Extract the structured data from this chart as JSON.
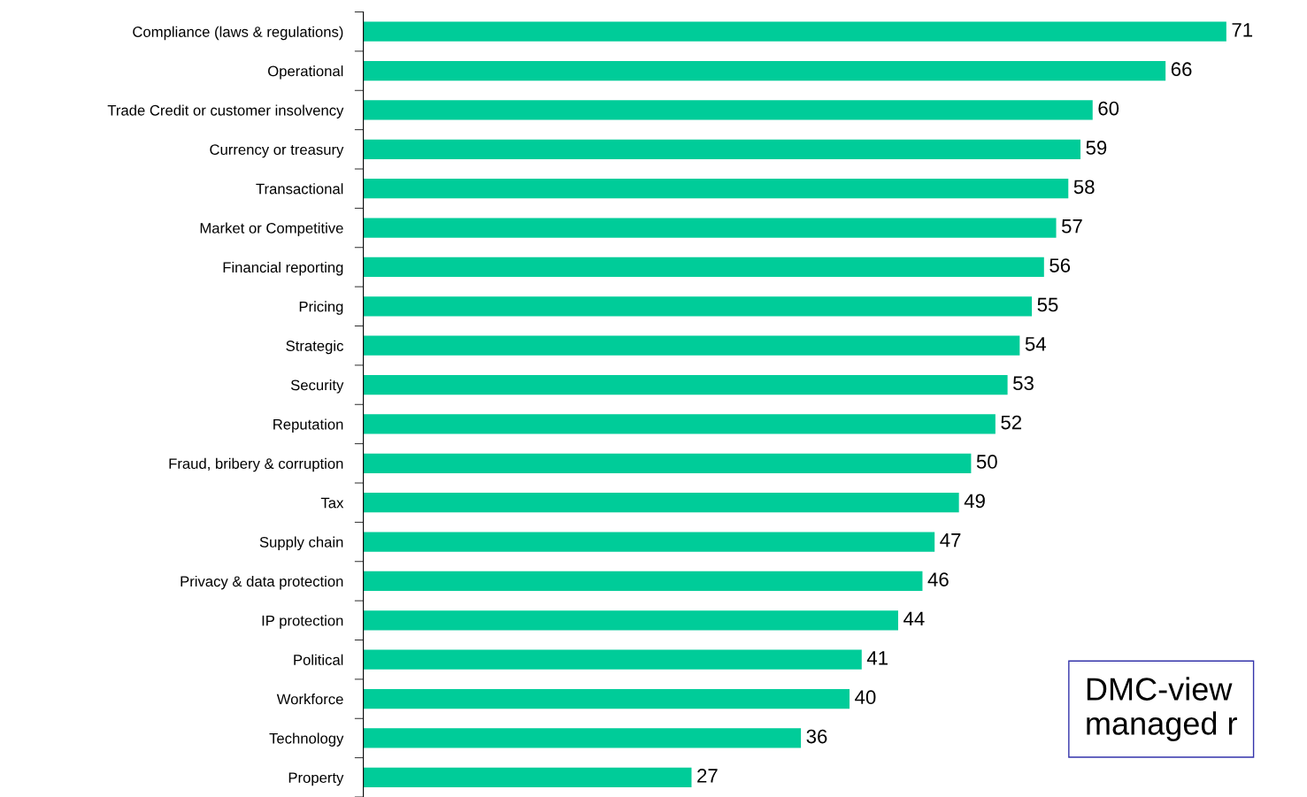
{
  "chart_data": {
    "type": "bar",
    "orientation": "horizontal",
    "categories": [
      "Compliance (laws & regulations)",
      "Operational",
      "Trade Credit or customer insolvency",
      "Currency or treasury",
      "Transactional",
      "Market or Competitive",
      "Financial reporting",
      "Pricing",
      "Strategic",
      "Security",
      "Reputation",
      "Fraud, bribery & corruption",
      "Tax",
      "Supply chain",
      "Privacy & data protection",
      "IP protection",
      "Political",
      "Workforce",
      "Technology",
      "Property"
    ],
    "values": [
      71,
      66,
      60,
      59,
      58,
      57,
      56,
      55,
      54,
      53,
      52,
      50,
      49,
      47,
      46,
      44,
      41,
      40,
      36,
      27
    ],
    "color": "#00cc99",
    "data_labels": true,
    "annotations": [
      "DMC-view\nmanaged r"
    ]
  }
}
